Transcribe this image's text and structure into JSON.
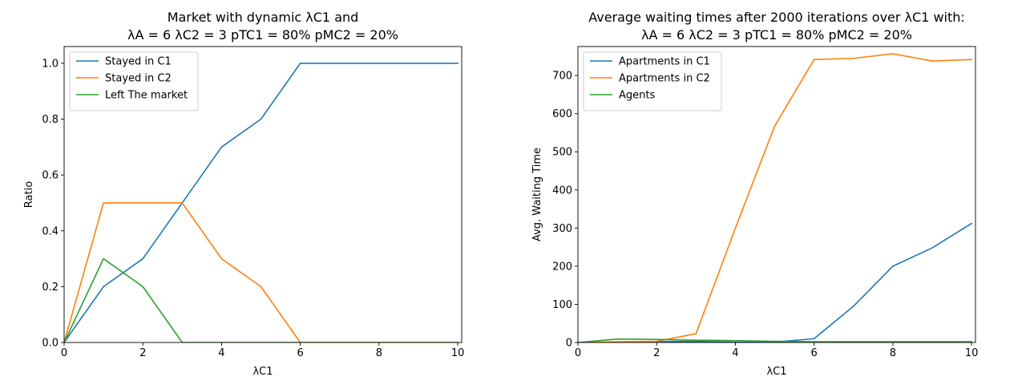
{
  "figure": {
    "background": "#ffffff"
  },
  "chart_data": [
    {
      "type": "line",
      "title_line1": "Market with dynamic λC1 and",
      "title_line2": "λA = 6 λC2 = 3 pTC1 = 80% pMC2 = 20%",
      "xlabel": "λC1",
      "ylabel": "Ratio",
      "xlim": [
        0,
        10.1
      ],
      "ylim": [
        0,
        1.06
      ],
      "xticks": [
        0,
        2,
        4,
        6,
        8,
        10
      ],
      "xtick_labels": [
        "0",
        "2",
        "4",
        "6",
        "8",
        "10"
      ],
      "yticks": [
        0.0,
        0.2,
        0.4,
        0.6,
        0.8,
        1.0
      ],
      "ytick_labels": [
        "0.0",
        "0.2",
        "0.4",
        "0.6",
        "0.8",
        "1.0"
      ],
      "grid": false,
      "legend_position": "upper-left",
      "x": [
        0,
        1,
        2,
        3,
        4,
        5,
        6,
        7,
        8,
        9,
        10
      ],
      "series": [
        {
          "name": "Stayed in C1",
          "color": "#1f77b4",
          "values": [
            0.0,
            0.2,
            0.3,
            0.5,
            0.7,
            0.8,
            1.0,
            1.0,
            1.0,
            1.0,
            1.0
          ]
        },
        {
          "name": "Stayed in C2",
          "color": "#ff7f0e",
          "values": [
            0.0,
            0.5,
            0.5,
            0.5,
            0.3,
            0.2,
            0.0,
            0.0,
            0.0,
            0.0,
            0.0
          ]
        },
        {
          "name": "Left The market",
          "color": "#2ca02c",
          "values": [
            0.0,
            0.3,
            0.2,
            0.0,
            0.0,
            0.0,
            0.0,
            0.0,
            0.0,
            0.0,
            0.0
          ]
        }
      ]
    },
    {
      "type": "line",
      "title_line1": "Average waiting times after 2000 iterations over λC1 with:",
      "title_line2": "λA = 6 λC2 = 3 pTC1 = 80% pMC2 = 20%",
      "xlabel": "λC1",
      "ylabel": "Avg. Waiting Time",
      "xlim": [
        0,
        10.1
      ],
      "ylim": [
        0,
        776
      ],
      "xticks": [
        0,
        2,
        4,
        6,
        8,
        10
      ],
      "xtick_labels": [
        "0",
        "2",
        "4",
        "6",
        "8",
        "10"
      ],
      "yticks": [
        0,
        100,
        200,
        300,
        400,
        500,
        600,
        700
      ],
      "ytick_labels": [
        "0",
        "100",
        "200",
        "300",
        "400",
        "500",
        "600",
        "700"
      ],
      "grid": false,
      "legend_position": "upper-left",
      "x": [
        0,
        1,
        2,
        3,
        4,
        5,
        6,
        7,
        8,
        9,
        10
      ],
      "series": [
        {
          "name": "Apartments in C1",
          "color": "#1f77b4",
          "values": [
            0,
            1,
            2,
            3,
            1,
            1,
            10,
            95,
            200,
            248,
            312
          ]
        },
        {
          "name": "Apartments in C2",
          "color": "#ff7f0e",
          "values": [
            0,
            2,
            3,
            23,
            300,
            568,
            742,
            745,
            757,
            738,
            742
          ]
        },
        {
          "name": "Agents",
          "color": "#2ca02c",
          "values": [
            0,
            9,
            8,
            6,
            5,
            3,
            2,
            2,
            2,
            2,
            2
          ]
        }
      ]
    }
  ]
}
